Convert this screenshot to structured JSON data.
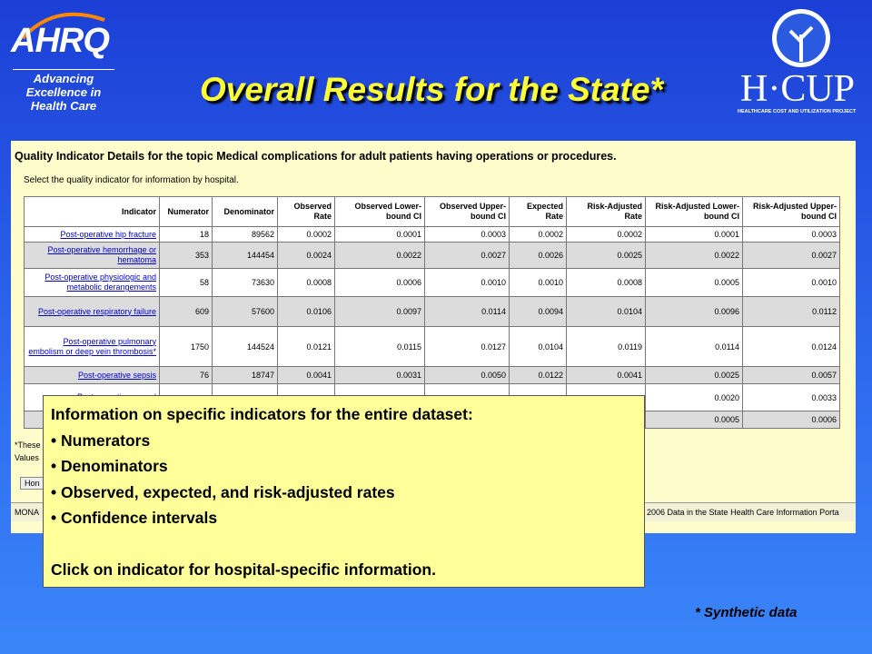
{
  "logo": {
    "agency": "AHRQ",
    "tagline": "Advancing Excellence in Health Care",
    "project": "H·CUP",
    "project_full": "HEALTHCARE COST AND UTILIZATION PROJECT"
  },
  "title": "Overall Results for the State*",
  "screenshot": {
    "heading": "Quality Indicator Details for the topic Medical complications for adult patients having operations or procedures.",
    "instruction": "Select the quality indicator for information by hospital.",
    "table": {
      "columns": [
        "Indicator",
        "Numerator",
        "Denominator",
        "Observed Rate",
        "Observed Lower-bound CI",
        "Observed Upper-bound CI",
        "Expected Rate",
        "Risk-Adjusted Rate",
        "Risk-Adjusted Lower-bound CI",
        "Risk-Adjusted Upper-bound CI"
      ],
      "rows": [
        [
          "Post-operative hip fracture",
          "18",
          "89562",
          "0.0002",
          "0.0001",
          "0.0003",
          "0.0002",
          "0.0002",
          "0.0001",
          "0.0003"
        ],
        [
          "Post-operative hemorrhage or hematoma",
          "353",
          "144454",
          "0.0024",
          "0.0022",
          "0.0027",
          "0.0026",
          "0.0025",
          "0.0022",
          "0.0027"
        ],
        [
          "Post-operative physiologic and metabolic derangements",
          "58",
          "73630",
          "0.0008",
          "0.0006",
          "0.0010",
          "0.0010",
          "0.0008",
          "0.0005",
          "0.0010"
        ],
        [
          "Post-operative respiratory failure",
          "609",
          "57600",
          "0.0106",
          "0.0097",
          "0.0114",
          "0.0094",
          "0.0104",
          "0.0096",
          "0.0112"
        ],
        [
          "Post-operative pulmonary embolism or deep vein thrombosis*",
          "1750",
          "144524",
          "0.0121",
          "0.0115",
          "0.0127",
          "0.0104",
          "0.0119",
          "0.0114",
          "0.0124"
        ],
        [
          "Post-operative sepsis",
          "76",
          "18747",
          "0.0041",
          "0.0031",
          "0.0050",
          "0.0122",
          "0.0041",
          "0.0025",
          "0.0057"
        ],
        [
          "Post-operative wound",
          null,
          null,
          null,
          null,
          null,
          null,
          null,
          "0.0020",
          "0.0033"
        ],
        [
          null,
          null,
          null,
          null,
          null,
          null,
          null,
          null,
          "0.0005",
          "0.0006"
        ]
      ]
    },
    "footnote_1": "*These",
    "footnote_2": "Values",
    "button": "Hon",
    "status_left": "MONA",
    "status_right": "2006 Data in the State Health Care Information Porta"
  },
  "callout": {
    "intro": "Information on specific indicators for the entire dataset:",
    "bullets": [
      "Numerators",
      "Denominators",
      "Observed, expected, and risk-adjusted rates",
      "Confidence intervals"
    ],
    "closing": "Click on indicator for hospital-specific information."
  },
  "note": "* Synthetic data"
}
